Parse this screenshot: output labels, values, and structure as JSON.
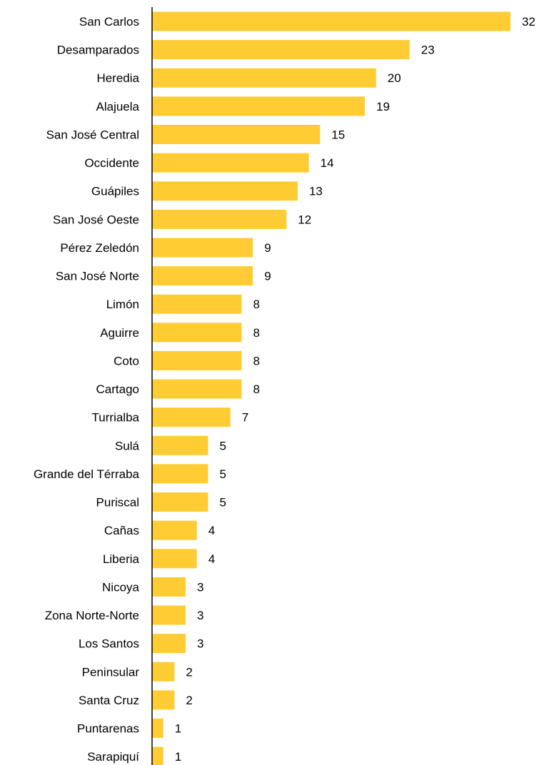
{
  "chart_data": {
    "type": "bar",
    "orientation": "horizontal",
    "categories": [
      "San Carlos",
      "Desamparados",
      "Heredia",
      "Alajuela",
      "San José Central",
      "Occidente",
      "Guápiles",
      "San José Oeste",
      "Pérez Zeledón",
      "San José Norte",
      "Limón",
      "Aguirre",
      "Coto",
      "Cartago",
      "Turrialba",
      "Sulá",
      "Grande del Térraba",
      "Puriscal",
      "Cañas",
      "Liberia",
      "Nicoya",
      "Zona Norte-Norte",
      "Los Santos",
      "Peninsular",
      "Santa Cruz",
      "Puntarenas",
      "Sarapiquí"
    ],
    "values": [
      32,
      23,
      20,
      19,
      15,
      14,
      13,
      12,
      9,
      9,
      8,
      8,
      8,
      8,
      7,
      5,
      5,
      5,
      4,
      4,
      3,
      3,
      3,
      2,
      2,
      1,
      1
    ],
    "bar_color": "#FFCC33",
    "axis_color": "#000000",
    "grid": false,
    "legend": "none",
    "data_labels": true,
    "xlim": [
      0,
      32
    ]
  }
}
